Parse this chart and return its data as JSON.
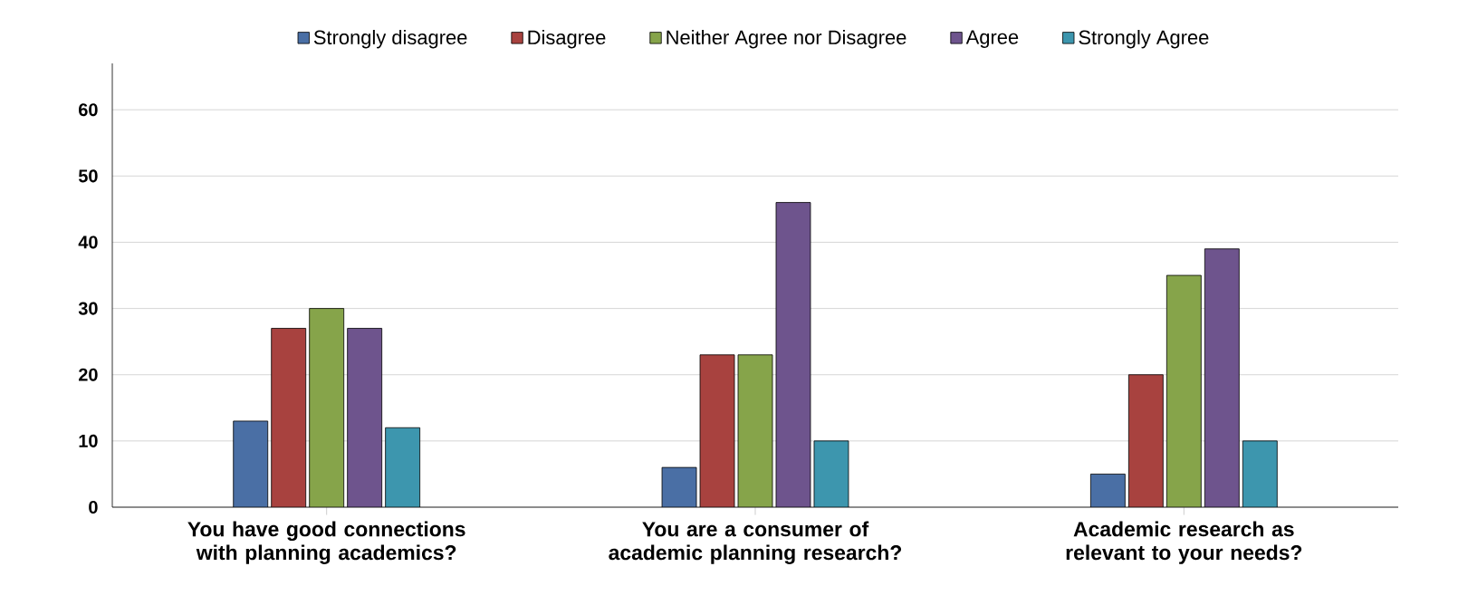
{
  "chart_data": {
    "type": "bar",
    "categories": [
      "You have good connections with planning academics?",
      "You are a consumer of academic planning research?",
      "Academic research as relevant to your needs?"
    ],
    "series": [
      {
        "name": "Strongly disagree",
        "color": "#4a6fa5",
        "values": [
          13,
          6,
          5
        ]
      },
      {
        "name": "Disagree",
        "color": "#a8423f",
        "values": [
          27,
          23,
          20
        ]
      },
      {
        "name": "Neither Agree nor Disagree",
        "color": "#86a44a",
        "values": [
          30,
          23,
          35
        ]
      },
      {
        "name": "Agree",
        "color": "#6e548d",
        "values": [
          27,
          46,
          39
        ]
      },
      {
        "name": "Strongly Agree",
        "color": "#3d96ae",
        "values": [
          12,
          10,
          10
        ]
      }
    ],
    "ylim": [
      0,
      67
    ],
    "yticks": [
      0,
      10,
      20,
      30,
      40,
      50,
      60
    ],
    "grid": "y",
    "legend": "top"
  }
}
